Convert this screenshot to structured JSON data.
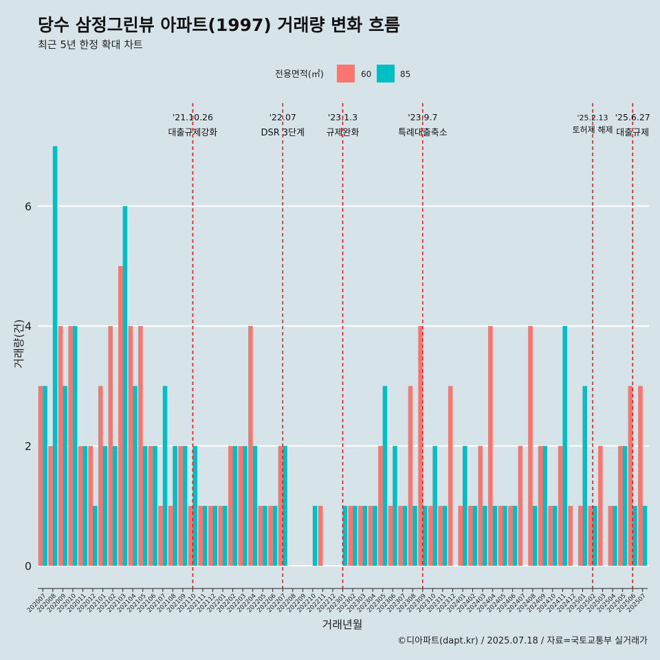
{
  "chart_data": {
    "type": "bar",
    "title": "당수 삼정그린뷰 아파트(1997) 거래량 변화 흐름",
    "subtitle": "최근 5년 한정 확대 차트",
    "xlabel": "거래년월",
    "ylabel": "거래량(건)",
    "caption": "©디아파트(dapt.kr) / 2025.07.18 / 자료=국토교통부 실거래가",
    "legend_title": "전용면적(㎡)",
    "legend_position": "top",
    "ylim": [
      0,
      7
    ],
    "yticks": [
      0,
      2,
      4,
      6
    ],
    "categories": [
      "202007",
      "202008",
      "202009",
      "202010",
      "202011",
      "202012",
      "202101",
      "202102",
      "202103",
      "202104",
      "202105",
      "202106",
      "202107",
      "202108",
      "202109",
      "202110",
      "202111",
      "202112",
      "202201",
      "202202",
      "202203",
      "202204",
      "202205",
      "202206",
      "202207",
      "202208",
      "202209",
      "202210",
      "202211",
      "202212",
      "202301",
      "202302",
      "202303",
      "202304",
      "202305",
      "202306",
      "202307",
      "202308",
      "202309",
      "202310",
      "202311",
      "202312",
      "202401",
      "202402",
      "202403",
      "202404",
      "202405",
      "202406",
      "202407",
      "202408",
      "202409",
      "202410",
      "202411",
      "202412",
      "202501",
      "202502",
      "202503",
      "202504",
      "202505",
      "202506",
      "202507"
    ],
    "series": [
      {
        "name": "60",
        "color": "#f8766d",
        "values": [
          3,
          2,
          4,
          4,
          2,
          2,
          3,
          4,
          5,
          4,
          4,
          2,
          1,
          1,
          2,
          1,
          1,
          1,
          1,
          2,
          2,
          4,
          1,
          1,
          2,
          0,
          0,
          0,
          1,
          0,
          0,
          1,
          1,
          1,
          2,
          1,
          1,
          3,
          4,
          1,
          1,
          3,
          1,
          1,
          2,
          4,
          1,
          1,
          2,
          4,
          2,
          1,
          2,
          1,
          1,
          1,
          2,
          1,
          2,
          3,
          3
        ]
      },
      {
        "name": "85",
        "color": "#00bfc4",
        "values": [
          3,
          7,
          3,
          4,
          2,
          1,
          2,
          2,
          6,
          3,
          2,
          2,
          3,
          2,
          2,
          2,
          1,
          1,
          1,
          2,
          2,
          2,
          1,
          1,
          2,
          0,
          0,
          1,
          0,
          0,
          1,
          1,
          1,
          1,
          3,
          2,
          1,
          1,
          1,
          2,
          1,
          0,
          2,
          1,
          1,
          1,
          1,
          1,
          0,
          1,
          2,
          1,
          4,
          0,
          3,
          1,
          0,
          1,
          2,
          1,
          1
        ]
      }
    ],
    "annotations": [
      {
        "date": "'21.10.26",
        "label": "대출규제강화",
        "category": "202110"
      },
      {
        "date": "'22.07",
        "label": "DSR 3단계",
        "category": "202207"
      },
      {
        "date": "'23.1.3",
        "label": "규제완화",
        "category": "202301"
      },
      {
        "date": "'23.9.7",
        "label": "특례대출축소",
        "category": "202309"
      },
      {
        "date": "'25.2.13",
        "label": "토허제 해제",
        "category": "202502"
      },
      {
        "date": "'25.6.27",
        "label": "대출규제",
        "category": "202506"
      }
    ]
  }
}
